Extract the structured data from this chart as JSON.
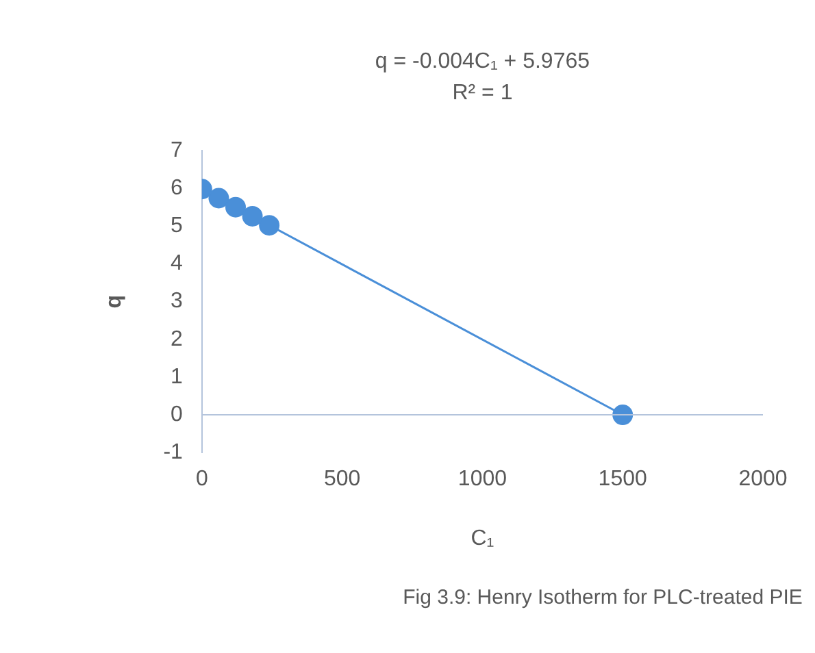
{
  "chart_data": {
    "type": "scatter",
    "xlabel": "C₁",
    "ylabel": "q",
    "annotations": [
      "q = -0.004C₁ + 5.9765",
      "R² = 1",
      "Fig 3.9: Henry Isotherm for PLC-treated PIE"
    ],
    "xlim": [
      0,
      2000
    ],
    "xticks": [
      0,
      500,
      1000,
      1500,
      2000
    ],
    "ylim": [
      -1,
      7
    ],
    "yticks": [
      -1,
      0,
      1,
      2,
      3,
      4,
      5,
      6,
      7
    ],
    "grid": false,
    "legend": false,
    "marker": "circle",
    "series": [
      {
        "color": "#4a8fd8",
        "x": [
          0,
          60,
          120,
          180,
          240,
          1500
        ],
        "values": [
          5.98,
          5.74,
          5.5,
          5.26,
          5.02,
          0
        ]
      },
      {
        "type": "line",
        "color": "#4a8fd8",
        "x": [
          0,
          1500
        ],
        "values": [
          5.98,
          0
        ],
        "marker": "none"
      }
    ]
  }
}
